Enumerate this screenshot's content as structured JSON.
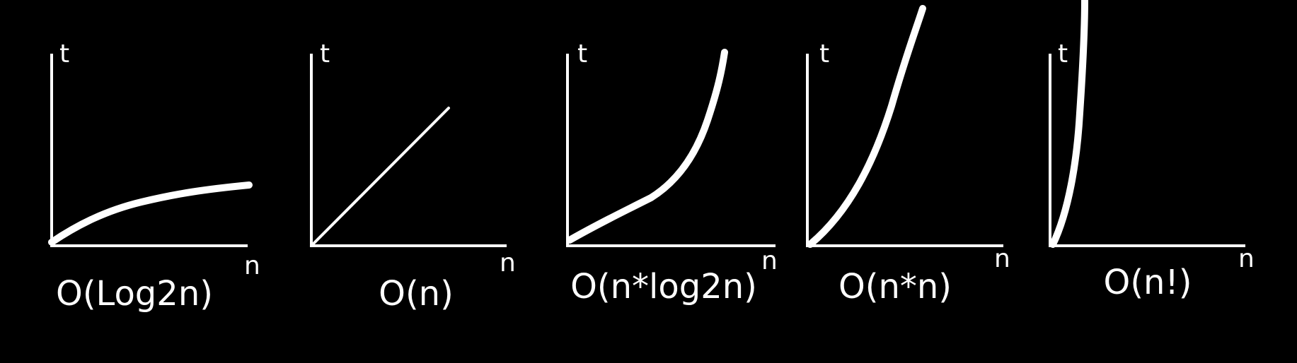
{
  "colors": {
    "background": "#000000",
    "foreground": "#ffffff"
  },
  "graphs": [
    {
      "y_axis_label": "t",
      "x_axis_label": "n",
      "caption": "O(Log2n)"
    },
    {
      "y_axis_label": "t",
      "x_axis_label": "n",
      "caption": "O(n)"
    },
    {
      "y_axis_label": "t",
      "x_axis_label": "n",
      "caption": "O(n*log2n)"
    },
    {
      "y_axis_label": "t",
      "x_axis_label": "n",
      "caption": "O(n*n)"
    },
    {
      "y_axis_label": "t",
      "x_axis_label": "n",
      "caption": "O(n!)"
    }
  ]
}
